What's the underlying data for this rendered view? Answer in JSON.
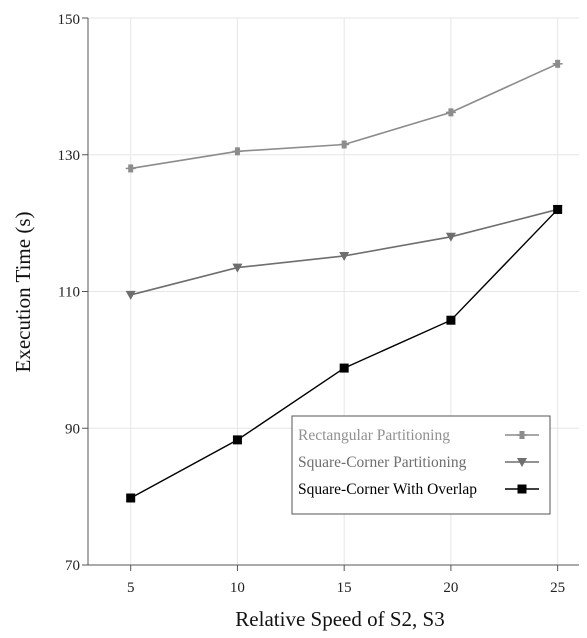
{
  "chart_data": {
    "type": "line",
    "xlabel": "Relative Speed of S2, S3",
    "ylabel": "Execution Time (s)",
    "x": [
      5,
      10,
      15,
      20,
      25
    ],
    "xticks": [
      5,
      10,
      15,
      20,
      25
    ],
    "yticks": [
      70,
      90,
      110,
      130,
      150
    ],
    "xlim": [
      3,
      26
    ],
    "ylim": [
      70,
      150
    ],
    "grid": true,
    "legend_position": "bottom-right",
    "series": [
      {
        "name": "Rectangular Partitioning",
        "values": [
          128,
          130.5,
          131.5,
          136.2,
          143.3
        ],
        "color": "#8c8c8c",
        "text_color": "#909090",
        "marker": "plus-square"
      },
      {
        "name": "Square-Corner Partitioning",
        "values": [
          109.5,
          113.5,
          115.2,
          118,
          122
        ],
        "color": "#6e6e6e",
        "text_color": "#6e6e6e",
        "marker": "triangle-down"
      },
      {
        "name": "Square-Corner With Overlap",
        "values": [
          79.8,
          88.3,
          98.8,
          105.8,
          122
        ],
        "color": "#000000",
        "text_color": "#000000",
        "marker": "square"
      }
    ]
  }
}
